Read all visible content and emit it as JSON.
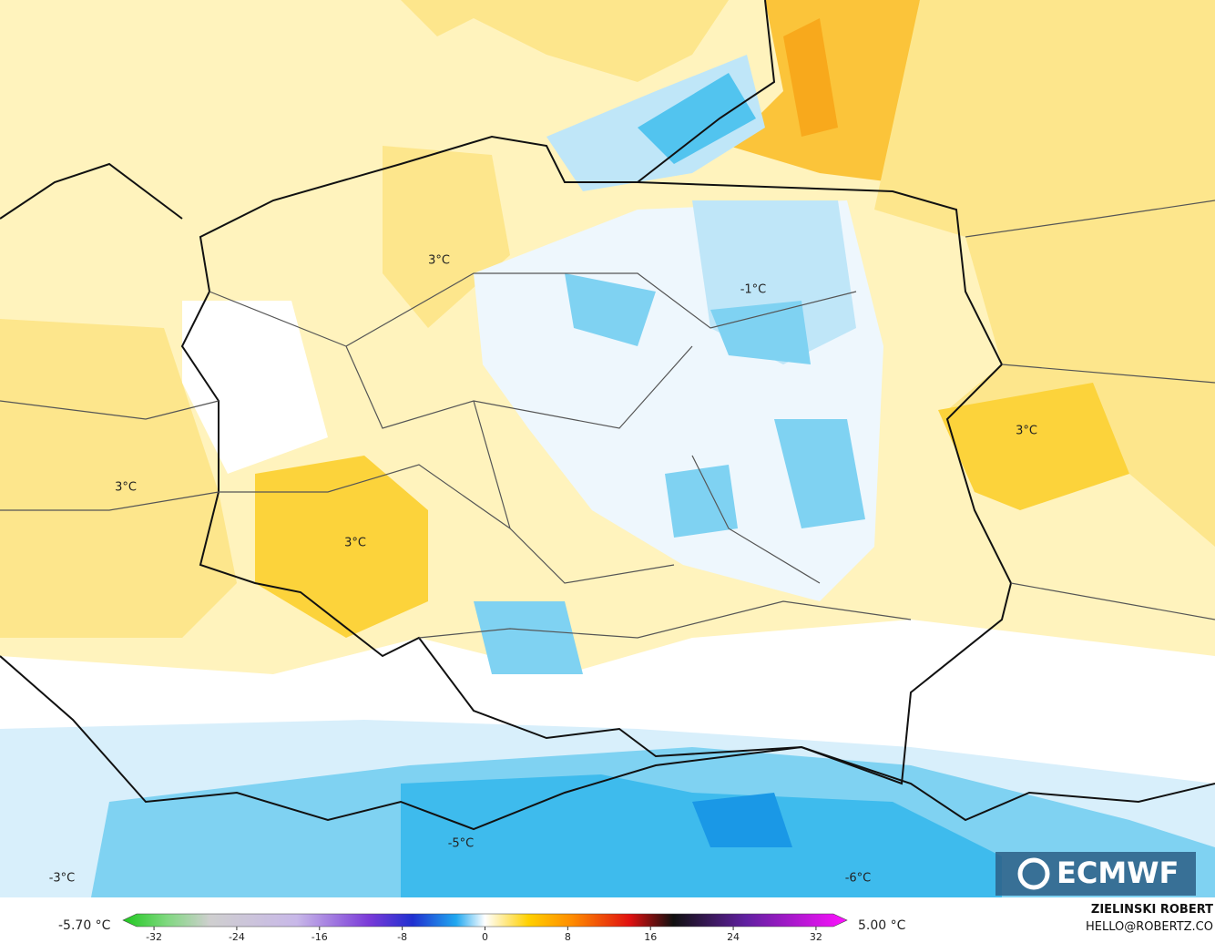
{
  "map": {
    "labels": [
      "3°C",
      "3°C",
      "3°C",
      "3°C",
      "-1°C",
      "-5°C",
      "-3°C",
      "-6°C"
    ],
    "logo": "ECMWF"
  },
  "colorbar": {
    "min_label": "-5.70 °C",
    "max_label": "5.00 °C",
    "lim": [
      -35,
      35
    ],
    "ticks": [
      -32,
      -24,
      -16,
      -8,
      0,
      8,
      16,
      24,
      32
    ]
  },
  "credit": {
    "author": "ZIELINSKI ROBERT",
    "contact": "HELLO@ROBERTZ.CO"
  }
}
